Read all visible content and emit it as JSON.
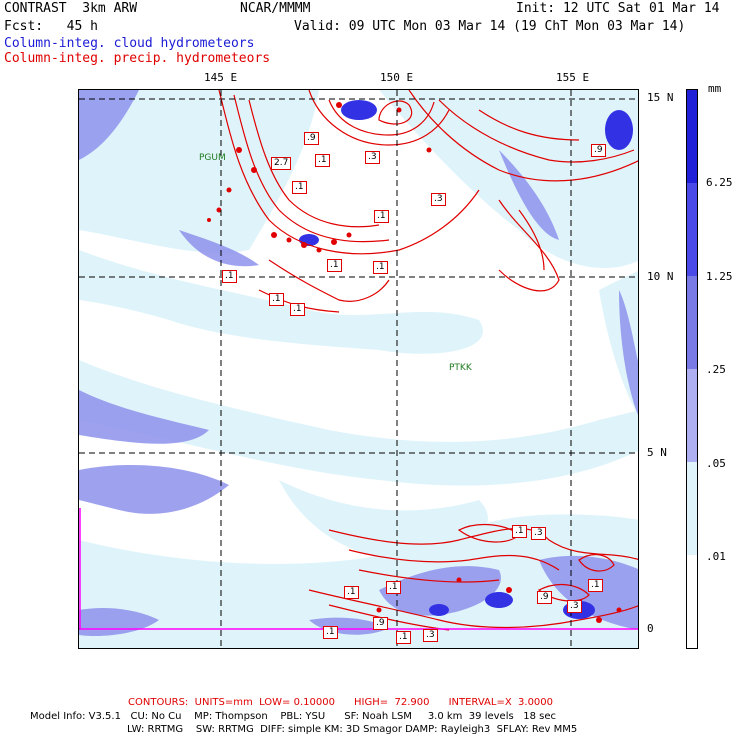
{
  "header": {
    "model": "CONTRAST  3km ARW",
    "center": "NCAR/MMMM",
    "init": "Init: 12 UTC Sat 01 Mar 14",
    "fcst": "Fcst:   45 h",
    "valid": "Valid: 09 UTC Mon 03 Mar 14 (19 ChT Mon 03 Mar 14)",
    "field_blue": "Column-integ. cloud hydrometeors",
    "field_red": "Column-integ. precip. hydrometeors"
  },
  "map": {
    "lon_labels": [
      "145 E",
      "150 E",
      "155 E"
    ],
    "lat_labels": [
      "15 N",
      "10 N",
      "5 N",
      "0"
    ],
    "stations": [
      "PGUM",
      "PTKK"
    ],
    "contour_labels": [
      ".9",
      "2.7",
      ".1",
      ".3",
      ".9",
      ".1",
      ".1",
      ".1",
      ".1",
      ".1",
      ".3",
      ".1",
      ".1",
      ".1",
      ".3",
      ".9",
      ".9",
      ".1",
      ".1",
      ".3",
      ".1",
      ".1",
      ".1",
      ".3"
    ],
    "colors": {
      "cloud_light": "#dff4fa",
      "cloud_mid": "#8e92ec",
      "cloud_dark": "#3232e4",
      "precip": "#e00000",
      "equator": "#ff00ff"
    }
  },
  "colorbar": {
    "unit": "mm",
    "labels": [
      "6.25",
      "1.25",
      ".25",
      ".05",
      ".01"
    ],
    "colors": [
      "#2020d8",
      "#4a4ae8",
      "#7a7ae6",
      "#aeaef2",
      "#dff4fa",
      "#ffffff"
    ]
  },
  "footer": {
    "contours": "CONTOURS:  UNITS=mm  LOW= 0.10000      HIGH=  72.900      INTERVAL=X  3.0000",
    "line1": "Model Info: V3.5.1   CU: No Cu    MP: Thompson    PBL: YSU      SF: Noah LSM     3.0 km  39 levels   18 sec",
    "line2": "LW: RRTMG    SW: RRTMG  DIFF: simple KM: 3D Smagor DAMP: Rayleigh3  SFLAY: Rev MM5"
  }
}
